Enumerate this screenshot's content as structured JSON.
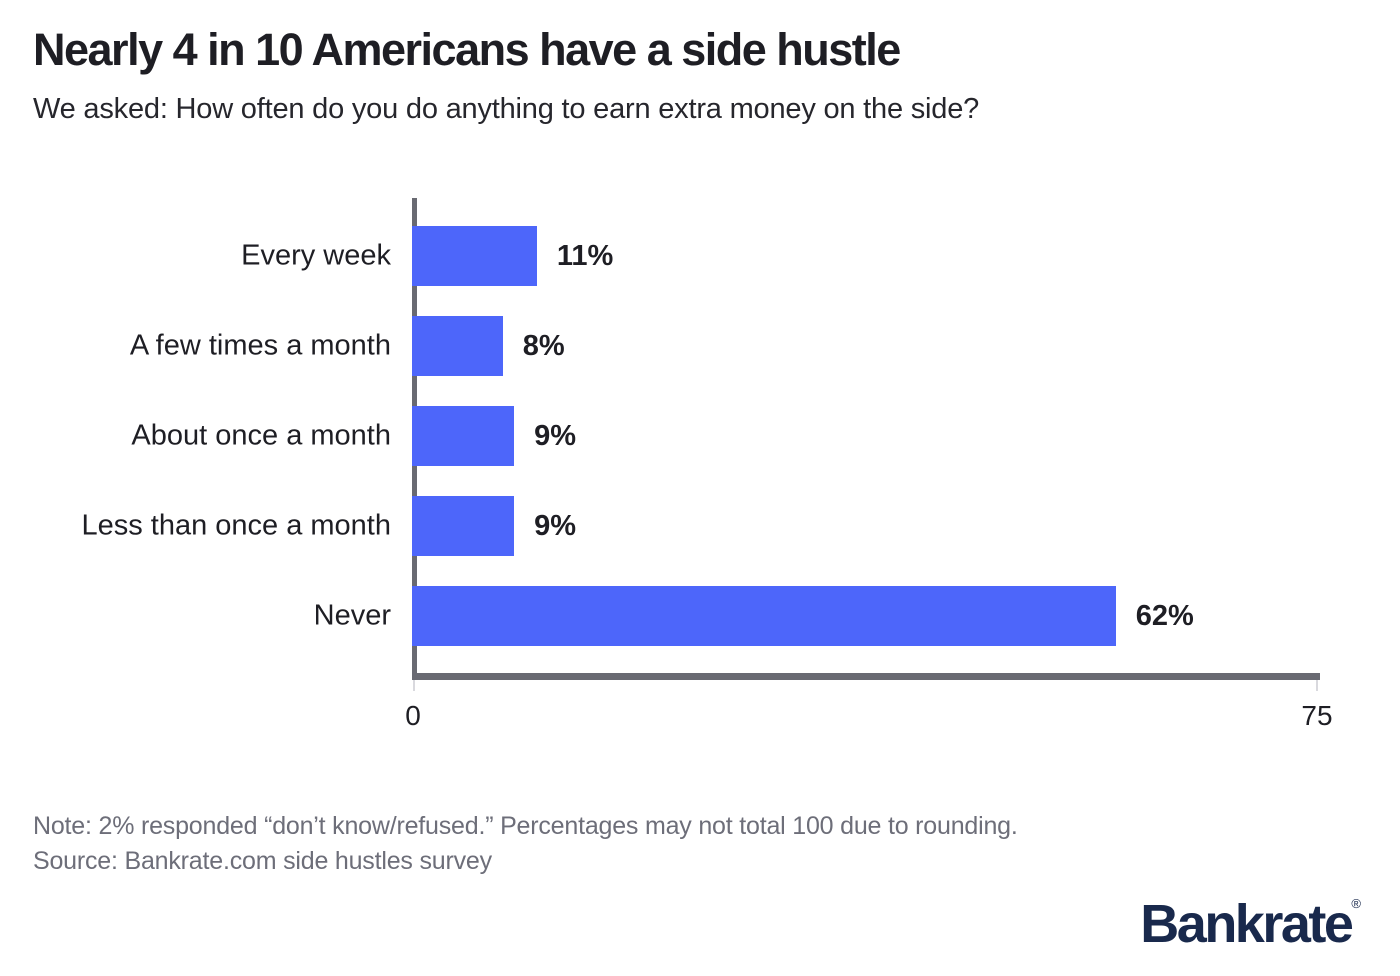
{
  "chart_data": {
    "type": "bar",
    "orientation": "horizontal",
    "title": "Nearly 4 in 10 Americans have a side hustle",
    "subtitle": "We asked: How often do you do anything to earn extra money on the side?",
    "categories": [
      "Every week",
      "A few times a month",
      "About once a month",
      "Less than once a month",
      "Never"
    ],
    "values": [
      11,
      8,
      9,
      9,
      62
    ],
    "value_labels": [
      "11%",
      "8%",
      "9%",
      "9%",
      "62%"
    ],
    "unit": "%",
    "xlim": [
      0,
      75
    ],
    "x_ticks": [
      0,
      75
    ],
    "x_tick_labels": [
      "0",
      "75"
    ],
    "grid": false,
    "legend": false,
    "bar_color": "#4d66fa",
    "axis_color": "#696a72"
  },
  "footer": {
    "note": "Note: 2% responded “don’t know/refused.” Percentages may not total 100 due to rounding.",
    "source": "Source: Bankrate.com side hustles survey",
    "logo_text": "Bankrate",
    "logo_registered_mark": "®"
  }
}
